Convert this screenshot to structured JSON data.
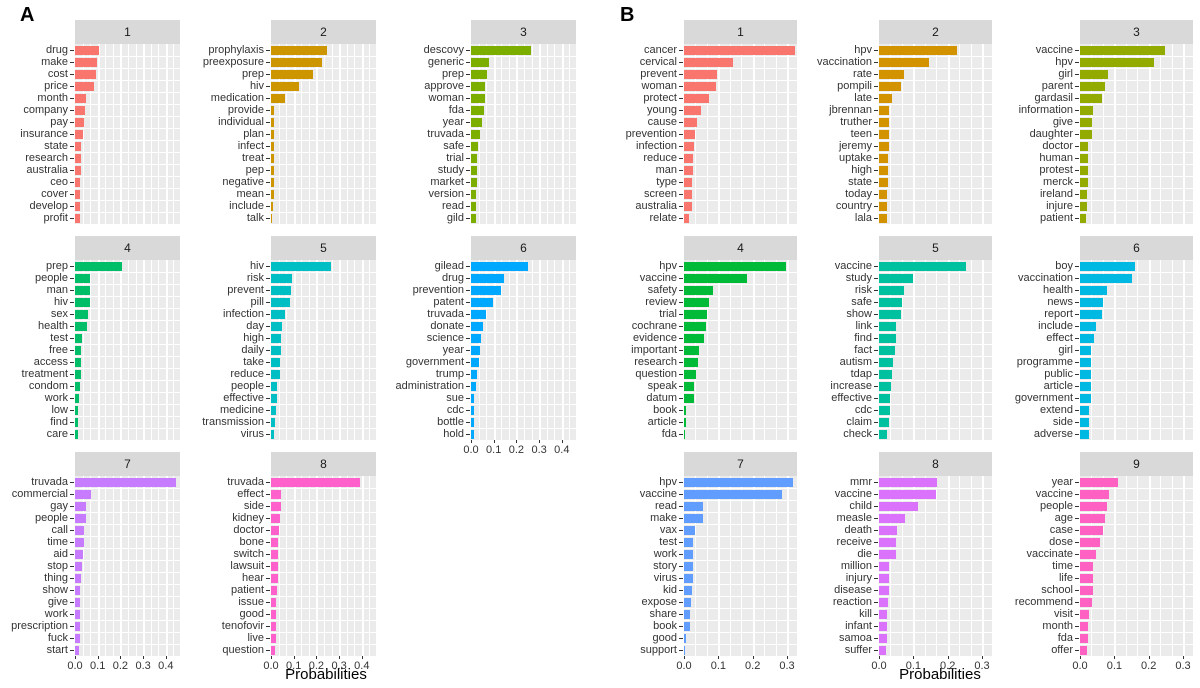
{
  "figure": {
    "panel_a_label": "A",
    "panel_b_label": "B",
    "xlabel": "Probabilities"
  },
  "chart_data": [
    {
      "panel": "A",
      "type": "bar",
      "orientation": "horizontal",
      "xlabel": "Probabilities",
      "x_ticks": [
        0.0,
        0.1,
        0.2,
        0.3,
        0.4
      ],
      "xlim": [
        0,
        0.4625
      ],
      "grid": "white-on-grey",
      "facets": [
        {
          "topic": "1",
          "color": "#F8766D",
          "words": [
            "drug",
            "make",
            "cost",
            "price",
            "month",
            "company",
            "pay",
            "insurance",
            "state",
            "research",
            "australia",
            "ceo",
            "cover",
            "develop",
            "profit"
          ],
          "values": [
            0.105,
            0.098,
            0.091,
            0.082,
            0.05,
            0.046,
            0.04,
            0.034,
            0.028,
            0.028,
            0.025,
            0.024,
            0.024,
            0.024,
            0.021
          ]
        },
        {
          "topic": "2",
          "color": "#CD9600",
          "words": [
            "prophylaxis",
            "preexposure",
            "prep",
            "hiv",
            "medication",
            "provide",
            "individual",
            "plan",
            "infect",
            "treat",
            "pep",
            "negative",
            "mean",
            "include",
            "talk"
          ],
          "values": [
            0.245,
            0.226,
            0.184,
            0.122,
            0.062,
            0.015,
            0.013,
            0.013,
            0.013,
            0.012,
            0.012,
            0.012,
            0.012,
            0.01,
            0.005
          ]
        },
        {
          "topic": "3",
          "color": "#7CAE00",
          "words": [
            "descovy",
            "generic",
            "prep",
            "approve",
            "woman",
            "fda",
            "year",
            "truvada",
            "safe",
            "trial",
            "study",
            "market",
            "version",
            "read",
            "gild"
          ],
          "values": [
            0.263,
            0.079,
            0.069,
            0.062,
            0.062,
            0.056,
            0.05,
            0.038,
            0.031,
            0.028,
            0.028,
            0.028,
            0.022,
            0.022,
            0.022
          ]
        },
        {
          "topic": "4",
          "color": "#00BE67",
          "words": [
            "prep",
            "people",
            "man",
            "hiv",
            "sex",
            "health",
            "test",
            "free",
            "access",
            "treatment",
            "condom",
            "work",
            "low",
            "find",
            "care"
          ],
          "values": [
            0.209,
            0.067,
            0.066,
            0.065,
            0.057,
            0.051,
            0.031,
            0.028,
            0.026,
            0.025,
            0.021,
            0.018,
            0.015,
            0.015,
            0.012
          ]
        },
        {
          "topic": "5",
          "color": "#00BFC4",
          "words": [
            "hiv",
            "risk",
            "prevent",
            "pill",
            "infection",
            "day",
            "high",
            "daily",
            "take",
            "reduce",
            "people",
            "effective",
            "medicine",
            "transmission",
            "virus"
          ],
          "values": [
            0.265,
            0.094,
            0.087,
            0.085,
            0.062,
            0.05,
            0.046,
            0.043,
            0.041,
            0.04,
            0.026,
            0.025,
            0.024,
            0.018,
            0.015
          ]
        },
        {
          "topic": "6",
          "color": "#00A9FF",
          "words": [
            "gilead",
            "drug",
            "prevention",
            "patent",
            "truvada",
            "donate",
            "science",
            "year",
            "government",
            "trump",
            "administration",
            "sue",
            "cdc",
            "bottle",
            "hold"
          ],
          "values": [
            0.25,
            0.145,
            0.13,
            0.095,
            0.065,
            0.055,
            0.042,
            0.038,
            0.037,
            0.027,
            0.022,
            0.015,
            0.015,
            0.013,
            0.012
          ]
        },
        {
          "topic": "7",
          "color": "#C77CFF",
          "words": [
            "truvada",
            "commercial",
            "gay",
            "people",
            "call",
            "time",
            "aid",
            "stop",
            "thing",
            "show",
            "give",
            "work",
            "prescription",
            "fuck",
            "start"
          ],
          "values": [
            0.445,
            0.07,
            0.048,
            0.048,
            0.04,
            0.04,
            0.037,
            0.03,
            0.025,
            0.024,
            0.022,
            0.021,
            0.021,
            0.021,
            0.018
          ]
        },
        {
          "topic": "8",
          "color": "#FF61CC",
          "words": [
            "truvada",
            "effect",
            "side",
            "kidney",
            "doctor",
            "bone",
            "switch",
            "lawsuit",
            "hear",
            "patient",
            "issue",
            "good",
            "tenofovir",
            "live",
            "question"
          ],
          "values": [
            0.39,
            0.042,
            0.042,
            0.04,
            0.034,
            0.033,
            0.03,
            0.03,
            0.029,
            0.025,
            0.023,
            0.021,
            0.02,
            0.02,
            0.019
          ]
        }
      ]
    },
    {
      "panel": "B",
      "type": "bar",
      "orientation": "horizontal",
      "xlabel": "Probabilities",
      "x_ticks": [
        0.0,
        0.1,
        0.2,
        0.3
      ],
      "xlim": [
        0,
        0.329
      ],
      "grid": "white-on-grey",
      "facets": [
        {
          "topic": "1",
          "color": "#F8766D",
          "words": [
            "cancer",
            "cervical",
            "prevent",
            "woman",
            "protect",
            "young",
            "cause",
            "prevention",
            "infection",
            "reduce",
            "man",
            "type",
            "screen",
            "australia",
            "relate"
          ],
          "values": [
            0.323,
            0.144,
            0.095,
            0.093,
            0.074,
            0.049,
            0.037,
            0.032,
            0.03,
            0.027,
            0.025,
            0.024,
            0.022,
            0.022,
            0.015
          ]
        },
        {
          "topic": "2",
          "color": "#D39200",
          "words": [
            "hpv",
            "vaccination",
            "rate",
            "pompili",
            "late",
            "jbrennan",
            "truther",
            "teen",
            "jeremy",
            "uptake",
            "high",
            "state",
            "today",
            "country",
            "lala"
          ],
          "values": [
            0.226,
            0.147,
            0.072,
            0.065,
            0.037,
            0.03,
            0.029,
            0.029,
            0.028,
            0.027,
            0.026,
            0.025,
            0.024,
            0.023,
            0.022
          ]
        },
        {
          "topic": "3",
          "color": "#93AA00",
          "words": [
            "vaccine",
            "hpv",
            "girl",
            "parent",
            "gardasil",
            "information",
            "give",
            "daughter",
            "doctor",
            "human",
            "protest",
            "merck",
            "ireland",
            "injure",
            "patient"
          ],
          "values": [
            0.248,
            0.216,
            0.081,
            0.074,
            0.063,
            0.037,
            0.036,
            0.034,
            0.024,
            0.023,
            0.022,
            0.022,
            0.02,
            0.019,
            0.018
          ]
        },
        {
          "topic": "4",
          "color": "#00BA38",
          "words": [
            "hpv",
            "vaccine",
            "safety",
            "review",
            "trial",
            "cochrane",
            "evidence",
            "important",
            "research",
            "question",
            "speak",
            "datum",
            "book",
            "article",
            "fda"
          ],
          "values": [
            0.297,
            0.182,
            0.083,
            0.073,
            0.066,
            0.063,
            0.058,
            0.045,
            0.042,
            0.036,
            0.029,
            0.028,
            0.005,
            0.005,
            0.004
          ]
        },
        {
          "topic": "5",
          "color": "#00C19F",
          "words": [
            "vaccine",
            "study",
            "risk",
            "safe",
            "show",
            "link",
            "find",
            "fact",
            "autism",
            "tdap",
            "increase",
            "effective",
            "cdc",
            "claim",
            "check"
          ],
          "values": [
            0.253,
            0.1,
            0.074,
            0.068,
            0.063,
            0.05,
            0.049,
            0.048,
            0.041,
            0.039,
            0.036,
            0.032,
            0.031,
            0.03,
            0.022
          ]
        },
        {
          "topic": "6",
          "color": "#00B9E3",
          "words": [
            "boy",
            "vaccination",
            "health",
            "news",
            "report",
            "include",
            "effect",
            "girl",
            "programme",
            "public",
            "article",
            "government",
            "extend",
            "side",
            "adverse"
          ],
          "values": [
            0.16,
            0.15,
            0.08,
            0.068,
            0.063,
            0.046,
            0.042,
            0.032,
            0.032,
            0.031,
            0.031,
            0.031,
            0.027,
            0.025,
            0.025
          ]
        },
        {
          "topic": "7",
          "color": "#619CFF",
          "words": [
            "hpv",
            "vaccine",
            "read",
            "make",
            "vax",
            "test",
            "work",
            "story",
            "virus",
            "kid",
            "expose",
            "share",
            "book",
            "good",
            "support"
          ],
          "values": [
            0.317,
            0.285,
            0.054,
            0.054,
            0.031,
            0.027,
            0.026,
            0.025,
            0.025,
            0.022,
            0.021,
            0.018,
            0.017,
            0.007,
            0.002
          ]
        },
        {
          "topic": "8",
          "color": "#DB72FB",
          "words": [
            "mmr",
            "vaccine",
            "child",
            "measle",
            "death",
            "receive",
            "die",
            "million",
            "injury",
            "disease",
            "reaction",
            "kill",
            "infant",
            "samoa",
            "suffer"
          ],
          "values": [
            0.168,
            0.167,
            0.113,
            0.076,
            0.051,
            0.049,
            0.049,
            0.03,
            0.028,
            0.028,
            0.025,
            0.023,
            0.023,
            0.022,
            0.02
          ]
        },
        {
          "topic": "9",
          "color": "#FF61C3",
          "words": [
            "year",
            "vaccine",
            "people",
            "age",
            "case",
            "dose",
            "vaccinate",
            "time",
            "life",
            "school",
            "recommend",
            "visit",
            "month",
            "fda",
            "offer"
          ],
          "values": [
            0.111,
            0.084,
            0.079,
            0.073,
            0.066,
            0.059,
            0.046,
            0.039,
            0.039,
            0.039,
            0.035,
            0.027,
            0.023,
            0.023,
            0.021
          ]
        }
      ]
    }
  ]
}
